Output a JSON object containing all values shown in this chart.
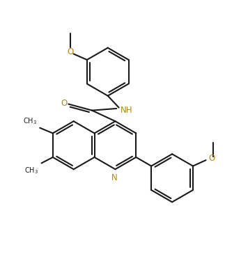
{
  "bg_color": "#ffffff",
  "bond_color": "#1a1a1a",
  "text_color": "#1a1a1a",
  "oc_color": "#b8860b",
  "figsize": [
    3.23,
    3.65
  ],
  "dpi": 100,
  "xlim": [
    0,
    9.5
  ],
  "ylim": [
    0,
    10.75
  ]
}
